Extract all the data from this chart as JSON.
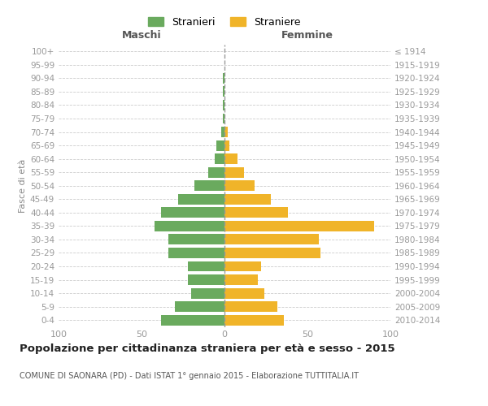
{
  "age_groups": [
    "0-4",
    "5-9",
    "10-14",
    "15-19",
    "20-24",
    "25-29",
    "30-34",
    "35-39",
    "40-44",
    "45-49",
    "50-54",
    "55-59",
    "60-64",
    "65-69",
    "70-74",
    "75-79",
    "80-84",
    "85-89",
    "90-94",
    "95-99",
    "100+"
  ],
  "birth_years": [
    "2010-2014",
    "2005-2009",
    "2000-2004",
    "1995-1999",
    "1990-1994",
    "1985-1989",
    "1980-1984",
    "1975-1979",
    "1970-1974",
    "1965-1969",
    "1960-1964",
    "1955-1959",
    "1950-1954",
    "1945-1949",
    "1940-1944",
    "1935-1939",
    "1930-1934",
    "1925-1929",
    "1920-1924",
    "1915-1919",
    "≤ 1914"
  ],
  "maschi": [
    38,
    30,
    20,
    22,
    22,
    34,
    34,
    42,
    38,
    28,
    18,
    10,
    6,
    5,
    2,
    1,
    1,
    1,
    1,
    0,
    0
  ],
  "femmine": [
    36,
    32,
    24,
    20,
    22,
    58,
    57,
    90,
    38,
    28,
    18,
    12,
    8,
    3,
    2,
    0,
    0,
    0,
    0,
    0,
    0
  ],
  "maschi_color": "#6aaa5e",
  "femmine_color": "#f0b429",
  "background_color": "#ffffff",
  "grid_color": "#cccccc",
  "title": "Popolazione per cittadinanza straniera per età e sesso - 2015",
  "subtitle": "COMUNE DI SAONARA (PD) - Dati ISTAT 1° gennaio 2015 - Elaborazione TUTTITALIA.IT",
  "ylabel_left": "Fasce di età",
  "xlabel_left": "Maschi",
  "xlabel_right": "Femmine",
  "legend_maschi": "Stranieri",
  "legend_femmine": "Straniere",
  "xlim": 100
}
